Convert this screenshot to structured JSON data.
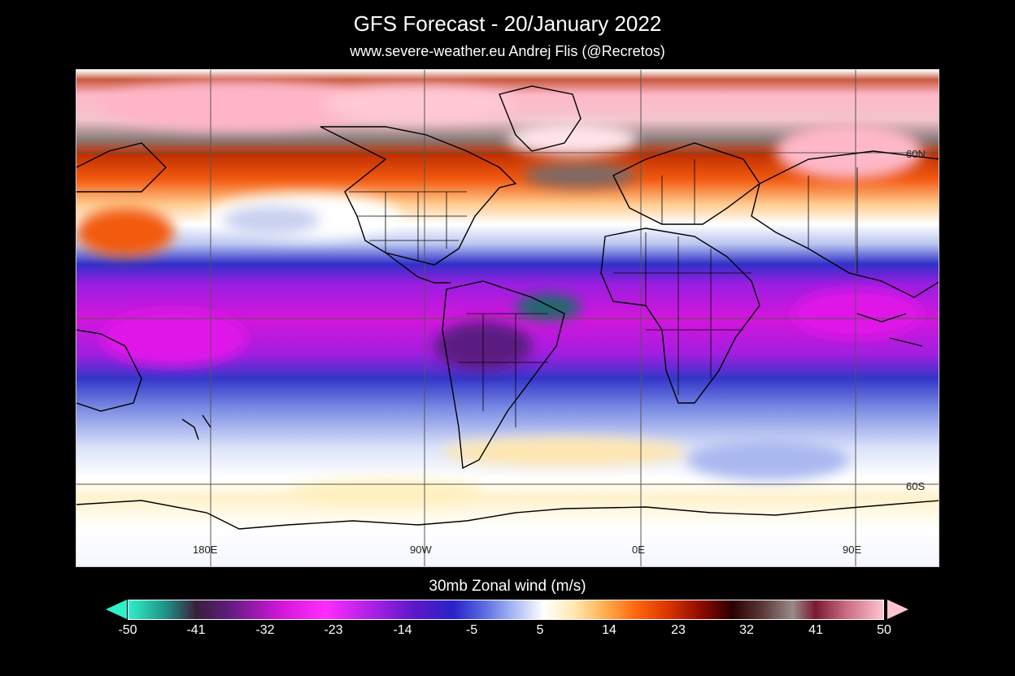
{
  "header": {
    "title": "GFS Forecast - 20/January 2022",
    "subtitle": "www.severe-weather.eu   Andrej Flis (@Recretos)"
  },
  "map": {
    "projection": "equirectangular",
    "lon_labels": [
      "180E",
      "90W",
      "0E",
      "90E"
    ],
    "lat_labels": [
      "60N",
      "60S"
    ],
    "features": [
      "wind-field",
      "coastlines",
      "country-borders",
      "us-state-borders",
      "graticule"
    ],
    "colors": {
      "tropical_easterlies": "#d016d6",
      "strong_westerlies": "#ffc4d0",
      "neutral": "#ffffff",
      "moderate_westerlies": "#ff6a10",
      "weak_easterlies": "#5868e0"
    }
  },
  "colorbar": {
    "title": "30mb Zonal wind (m/s)",
    "unit": "m/s",
    "ticks": [
      "-50",
      "-41",
      "-32",
      "-23",
      "-14",
      "-5",
      "5",
      "14",
      "23",
      "32",
      "41",
      "50"
    ],
    "min": -50,
    "max": 50
  }
}
